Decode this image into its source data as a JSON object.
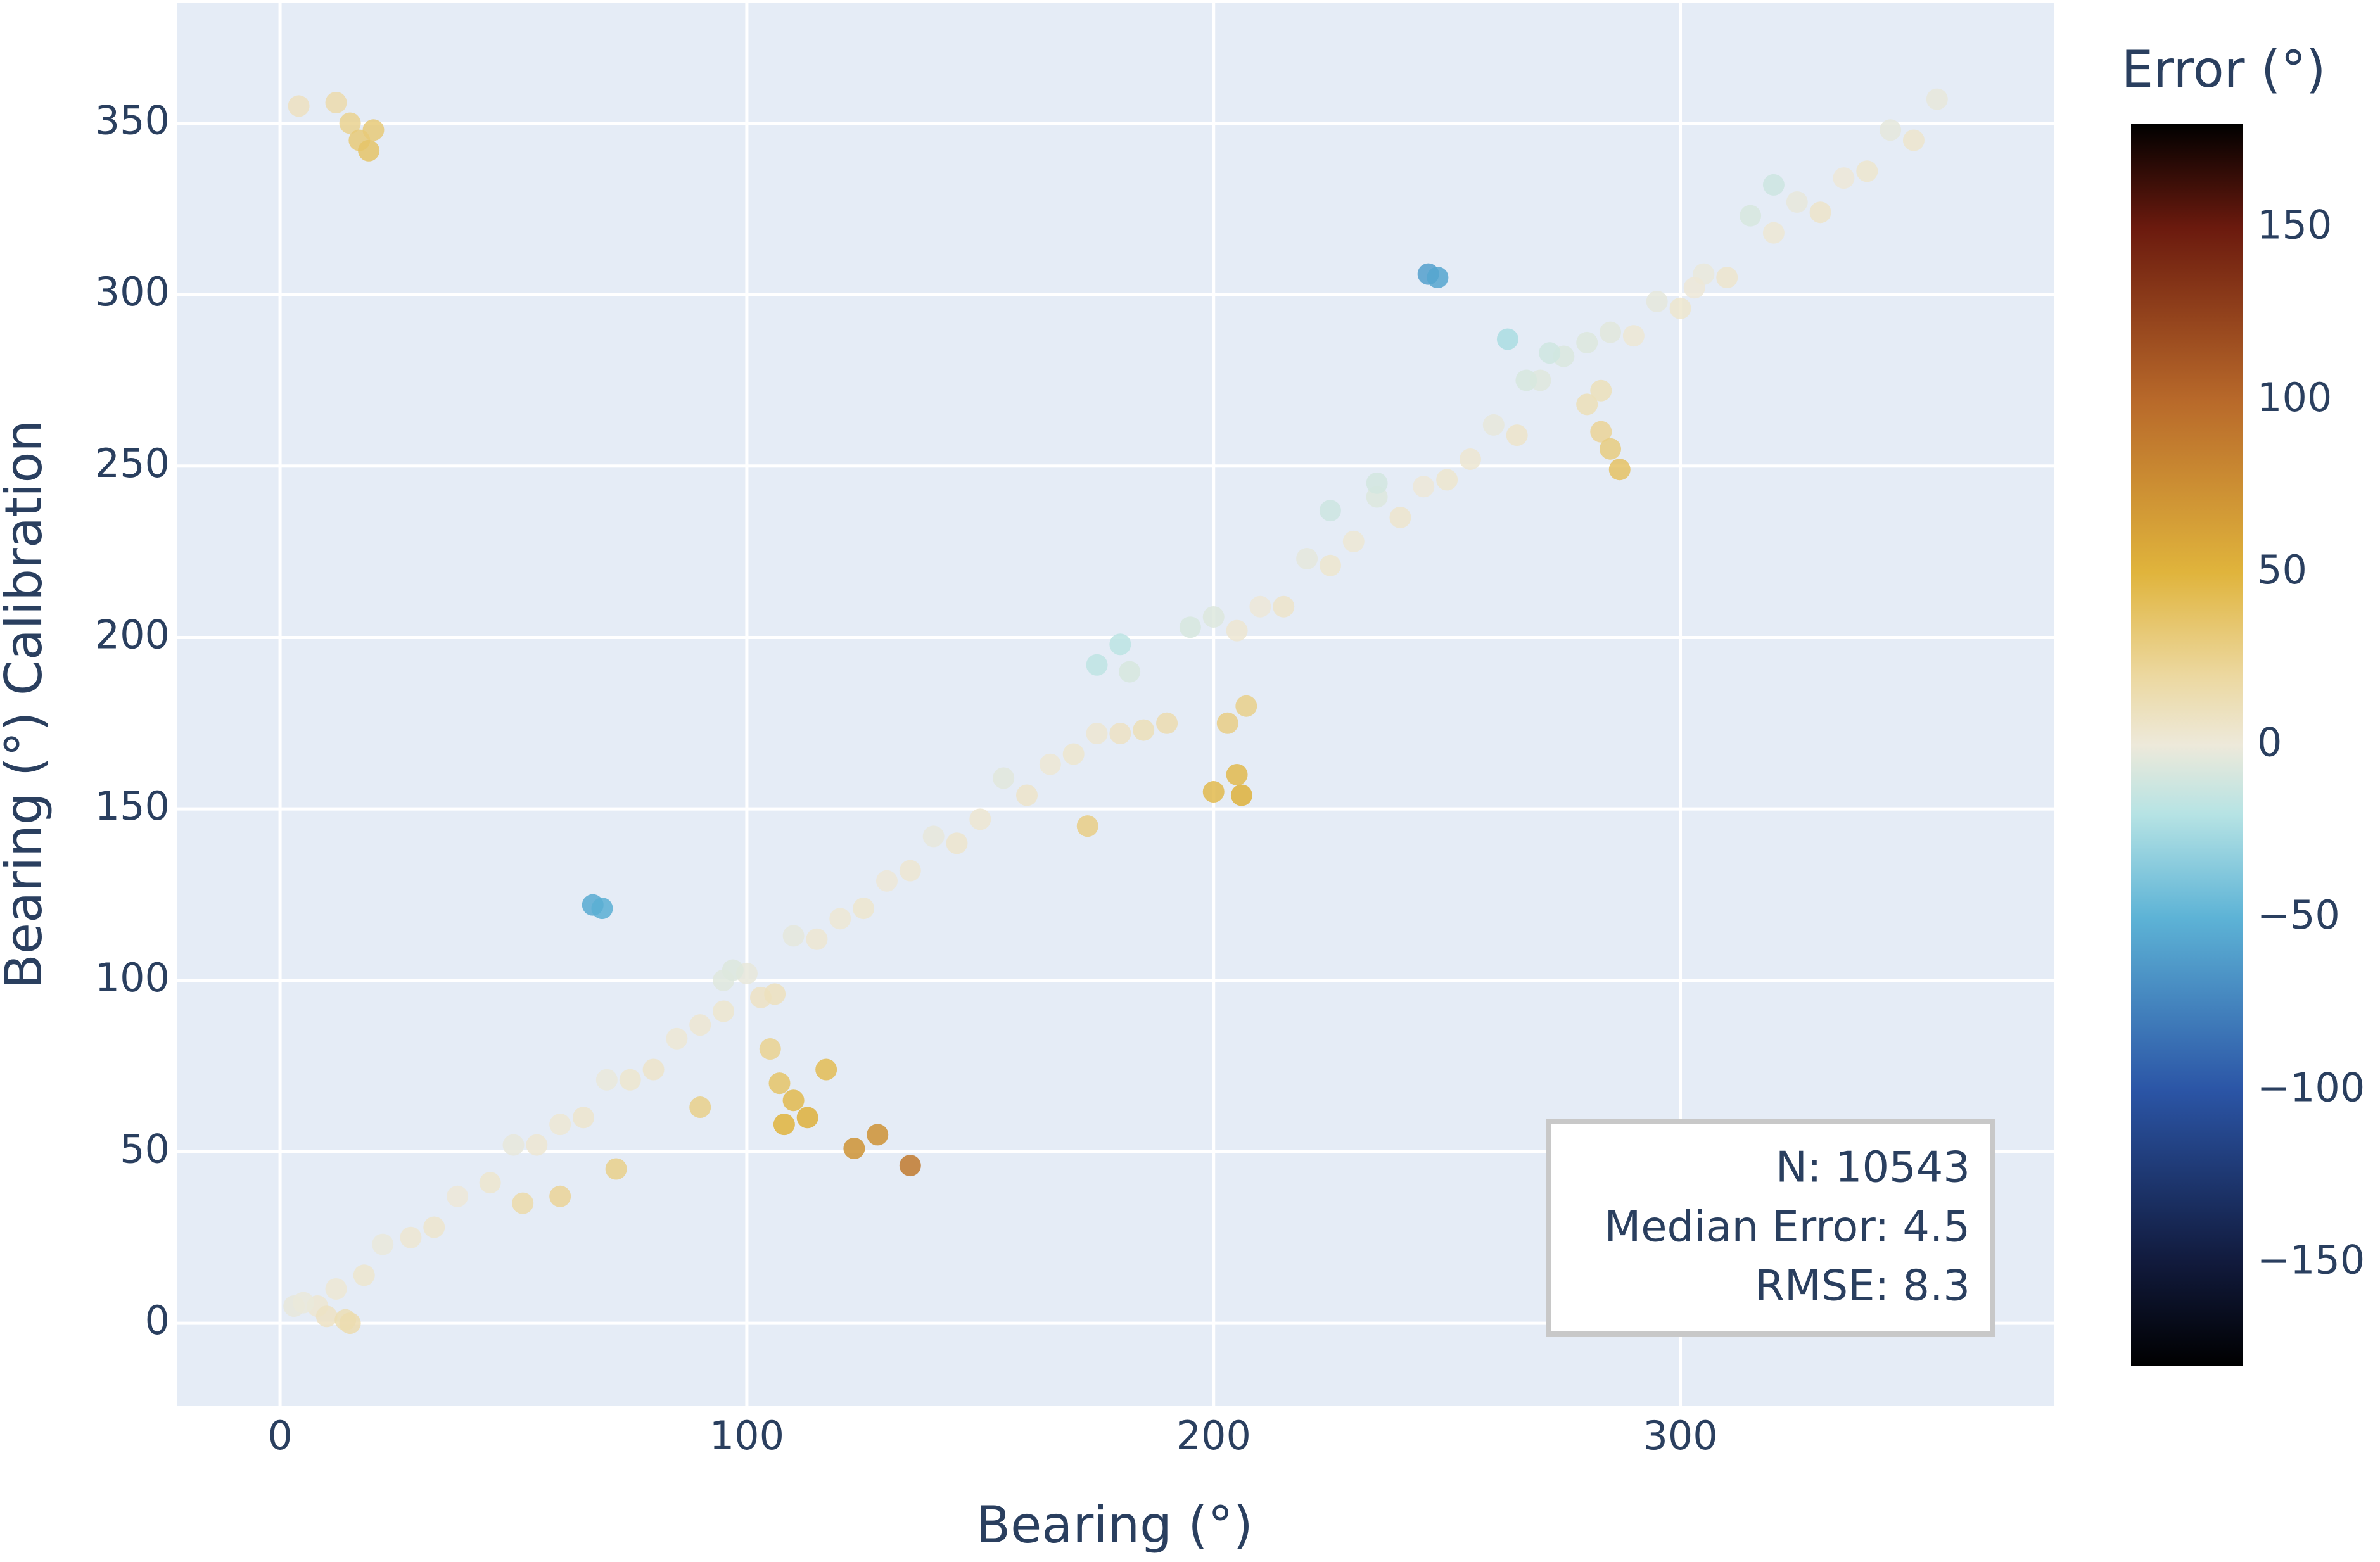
{
  "chart_data": {
    "type": "scatter",
    "xlabel": "Bearing (°)",
    "ylabel": "Bearing (°) Calibration",
    "xlim": [
      -22,
      380
    ],
    "ylim": [
      -24,
      385
    ],
    "xticks": [
      0,
      100,
      200,
      300
    ],
    "yticks": [
      0,
      50,
      100,
      150,
      200,
      250,
      300,
      350
    ],
    "grid": true,
    "x": [
      3,
      8,
      12,
      18,
      22,
      28,
      33,
      38,
      45,
      50,
      55,
      60,
      65,
      70,
      75,
      80,
      85,
      90,
      95,
      100,
      103,
      106,
      110,
      115,
      120,
      125,
      130,
      135,
      140,
      145,
      150,
      155,
      160,
      165,
      170,
      175,
      180,
      185,
      190,
      195,
      200,
      205,
      210,
      215,
      220,
      225,
      230,
      235,
      240,
      245,
      250,
      255,
      260,
      265,
      270,
      275,
      280,
      285,
      290,
      295,
      300,
      305,
      310,
      315,
      320,
      325,
      330,
      335,
      340,
      345,
      350,
      355,
      4,
      12,
      15,
      17,
      19,
      20,
      67,
      69,
      90,
      105,
      107,
      110,
      108,
      113,
      117,
      123,
      128,
      135,
      173,
      200,
      205,
      206,
      203,
      207,
      175,
      180,
      182,
      246,
      248,
      263,
      267,
      272,
      280,
      283,
      285,
      287,
      283,
      5,
      10,
      14,
      15,
      95,
      97,
      72,
      60,
      52,
      225,
      235,
      320,
      303
    ],
    "y": [
      5,
      5,
      10,
      14,
      23,
      25,
      28,
      37,
      41,
      52,
      52,
      58,
      60,
      71,
      71,
      74,
      83,
      87,
      91,
      102,
      95,
      96,
      113,
      112,
      118,
      121,
      129,
      132,
      142,
      140,
      147,
      159,
      154,
      163,
      166,
      172,
      172,
      173,
      175,
      203,
      206,
      202,
      209,
      209,
      223,
      221,
      228,
      241,
      235,
      244,
      246,
      252,
      262,
      259,
      275,
      282,
      286,
      289,
      288,
      298,
      296,
      306,
      305,
      323,
      318,
      327,
      324,
      334,
      336,
      348,
      345,
      357,
      355,
      356,
      350,
      345,
      342,
      348,
      122,
      121,
      63,
      80,
      70,
      65,
      58,
      60,
      74,
      51,
      55,
      46,
      145,
      155,
      160,
      154,
      175,
      180,
      192,
      198,
      190,
      306,
      305,
      287,
      275,
      283,
      268,
      260,
      255,
      249,
      272,
      6,
      2,
      1,
      0,
      100,
      103,
      45,
      37,
      35,
      237,
      245,
      332,
      302
    ],
    "color_values": [
      -2,
      3,
      2,
      4,
      -1,
      3,
      5,
      1,
      4,
      -2,
      3,
      2,
      5,
      -1,
      4,
      6,
      2,
      3,
      4,
      -2,
      8,
      10,
      -3,
      3,
      2,
      4,
      1,
      3,
      -2,
      5,
      3,
      -4,
      6,
      2,
      4,
      3,
      8,
      12,
      15,
      -8,
      -6,
      3,
      1,
      6,
      -3,
      4,
      2,
      -6,
      5,
      1,
      4,
      3,
      -2,
      6,
      -5,
      -7,
      -6,
      -4,
      2,
      -3,
      4,
      -1,
      5,
      -8,
      2,
      -2,
      6,
      1,
      4,
      -3,
      5,
      -2,
      9,
      16,
      25,
      32,
      37,
      32,
      -55,
      -52,
      27,
      25,
      37,
      45,
      50,
      53,
      43,
      72,
      73,
      89,
      28,
      45,
      45,
      52,
      28,
      27,
      -17,
      -18,
      -8,
      -60,
      -57,
      -24,
      -8,
      -11,
      12,
      23,
      30,
      38,
      11,
      -1,
      8,
      13,
      15,
      -5,
      -6,
      27,
      23,
      17,
      -12,
      -10,
      -12,
      1
    ],
    "colorbar": {
      "title": "Error (°)",
      "range": [
        -180,
        180
      ],
      "ticks": [
        {
          "value": -150,
          "label": "−150"
        },
        {
          "value": -100,
          "label": "−100"
        },
        {
          "value": -50,
          "label": "−50"
        },
        0,
        50,
        100,
        150
      ],
      "colorscale": [
        [
          -180,
          "#000000"
        ],
        [
          -150,
          "#111a3c"
        ],
        [
          -100,
          "#2b55a6"
        ],
        [
          -50,
          "#5db3d6"
        ],
        [
          -20,
          "#b6e3e4"
        ],
        [
          0,
          "#ede9da"
        ],
        [
          20,
          "#ecd8a0"
        ],
        [
          50,
          "#e0b43c"
        ],
        [
          100,
          "#b8692a"
        ],
        [
          150,
          "#6b1a0e"
        ],
        [
          180,
          "#000000"
        ]
      ]
    },
    "annotation": [
      "N: 10543",
      "Median Error: 4.5",
      "RMSE: 8.3"
    ]
  }
}
